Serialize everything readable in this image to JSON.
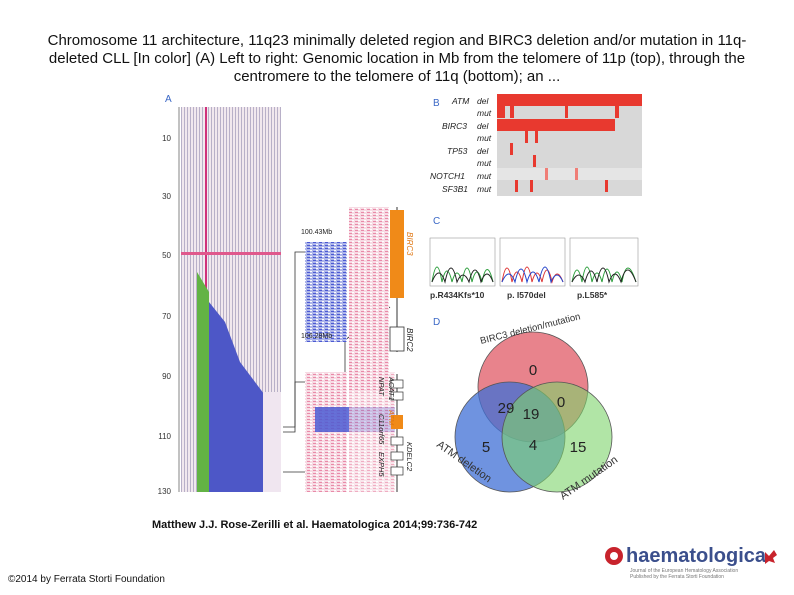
{
  "slide": {
    "title": "Chromosome 11 architecture, 11q23 minimally deleted region and BIRC3 deletion and/or mutation in 11q-deleted CLL [In color] (A) Left to right: Genomic location in Mb from the telomere of 11p (top), through the centromere to the telomere of 11q (bottom); an ...",
    "citation": "Matthew J.J. Rose-Zerilli et al. Haematologica 2014;99:736-742",
    "copyright": "©2014 by Ferrata Storti Foundation"
  },
  "figure": {
    "panel_labels": {
      "a": "A",
      "b": "B",
      "c": "C",
      "d": "D"
    },
    "panel_a": {
      "axis_ticks": [
        "10",
        "30",
        "50",
        "70",
        "90",
        "110",
        "130"
      ],
      "mb_top": "100.43Mb",
      "mb_bottom": "106.28Mb",
      "genes_top": [
        "BIRC3",
        "BIRC2"
      ],
      "genes_bottom": [
        "ACAT1",
        "NPAT",
        "ATM",
        "C11orf65",
        "KDELC2",
        "EXPH5"
      ]
    },
    "panel_b": {
      "rows": [
        {
          "gene": "ATM",
          "type": "del"
        },
        {
          "gene": "",
          "type": "mut"
        },
        {
          "gene": "BIRC3",
          "type": "del"
        },
        {
          "gene": "",
          "type": "mut"
        },
        {
          "gene": "TP53",
          "type": "del"
        },
        {
          "gene": "",
          "type": "mut"
        },
        {
          "gene": "NOTCH1",
          "type": "mut"
        },
        {
          "gene": "SF3B1",
          "type": "mut"
        }
      ]
    },
    "panel_c": {
      "mutations": [
        "p.R434Kfs*10",
        "p. I570del",
        "p.L585*"
      ]
    },
    "panel_d": {
      "set_labels": {
        "top": "BIRC3 deletion/mutation",
        "left": "ATM deletion",
        "right": "ATM mutation"
      },
      "counts": {
        "top_only": "0",
        "left_only": "5",
        "right_only": "15",
        "top_left": "29",
        "top_right": "0",
        "left_right": "4",
        "center": "19"
      },
      "colors": {
        "top": "#e05a66",
        "left": "#3f6fd6",
        "right": "#7dd36a"
      }
    }
  },
  "logo": {
    "name": "haematologica",
    "tagline_1": "Journal of the European Hematology Association",
    "tagline_2": "Published by the Ferrata Storti Foundation"
  }
}
